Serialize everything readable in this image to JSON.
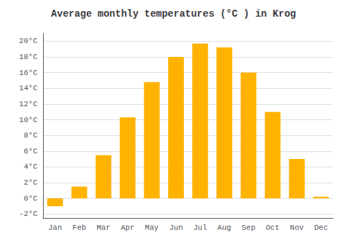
{
  "chart_data": {
    "type": "bar",
    "title": "Average monthly temperatures (°C ) in Krog",
    "categories": [
      "Jan",
      "Feb",
      "Mar",
      "Apr",
      "May",
      "Jun",
      "Jul",
      "Aug",
      "Sep",
      "Oct",
      "Nov",
      "Dec"
    ],
    "values": [
      -1.0,
      1.5,
      5.5,
      10.3,
      14.8,
      18.0,
      19.7,
      19.2,
      16.0,
      11.0,
      5.0,
      0.2
    ],
    "color": "#FFB300",
    "ylim": [
      -2.5,
      21
    ],
    "yticks": [
      {
        "value": -2,
        "label": "-2°C"
      },
      {
        "value": 0,
        "label": "0°C"
      },
      {
        "value": 2,
        "label": "2°C"
      },
      {
        "value": 4,
        "label": "4°C"
      },
      {
        "value": 6,
        "label": "6°C"
      },
      {
        "value": 8,
        "label": "8°C"
      },
      {
        "value": 10,
        "label": "10°C"
      },
      {
        "value": 12,
        "label": "12°C"
      },
      {
        "value": 14,
        "label": "14°C"
      },
      {
        "value": 16,
        "label": "16°C"
      },
      {
        "value": 18,
        "label": "18°C"
      },
      {
        "value": 20,
        "label": "20°C"
      }
    ],
    "grid": true
  }
}
